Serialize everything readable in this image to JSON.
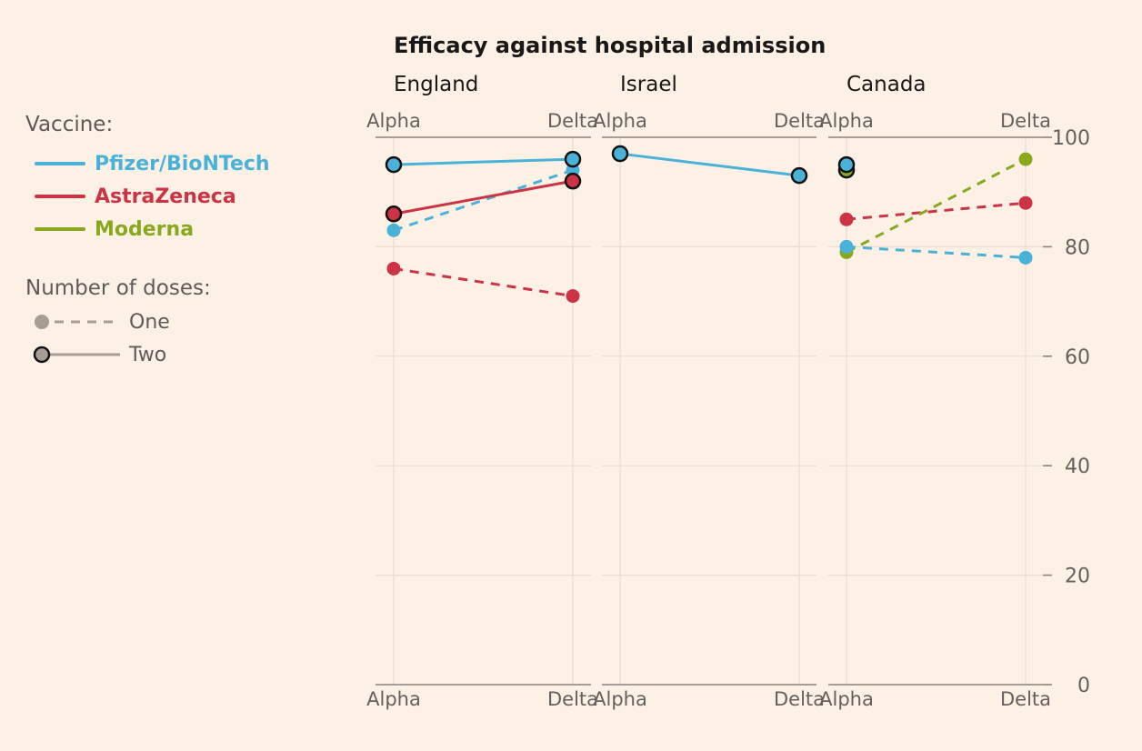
{
  "title": "Efficacy against hospital admission",
  "legend": {
    "vaccine_title": "Vaccine:",
    "vaccines": [
      {
        "label": "Pfizer/BioNTech",
        "color": "#4ab2d8"
      },
      {
        "label": "AstraZeneca",
        "color": "#cc3344"
      },
      {
        "label": "Moderna",
        "color": "#8aa81e"
      }
    ],
    "doses_title": "Number of doses:",
    "doses": [
      {
        "label": "One",
        "style": "dashed"
      },
      {
        "label": "Two",
        "style": "solid"
      }
    ]
  },
  "chart_data": {
    "type": "line",
    "title": "Efficacy against hospital admission",
    "categories": [
      "Alpha",
      "Delta"
    ],
    "y_ticks": [
      0,
      20,
      40,
      60,
      80,
      100
    ],
    "ylim": [
      0,
      100
    ],
    "grid": true,
    "legend_position": "left",
    "panels": [
      {
        "name": "England",
        "series": [
          {
            "vaccine": "Pfizer/BioNTech",
            "doses": "Two",
            "values": [
              95,
              96
            ]
          },
          {
            "vaccine": "Pfizer/BioNTech",
            "doses": "One",
            "values": [
              83,
              94
            ]
          },
          {
            "vaccine": "AstraZeneca",
            "doses": "Two",
            "values": [
              86,
              92
            ]
          },
          {
            "vaccine": "AstraZeneca",
            "doses": "One",
            "values": [
              76,
              71
            ]
          }
        ]
      },
      {
        "name": "Israel",
        "series": [
          {
            "vaccine": "Pfizer/BioNTech",
            "doses": "Two",
            "values": [
              97,
              93
            ]
          }
        ]
      },
      {
        "name": "Canada",
        "series": [
          {
            "vaccine": "Moderna",
            "doses": "Two",
            "values": [
              94,
              null
            ]
          },
          {
            "vaccine": "Pfizer/BioNTech",
            "doses": "Two",
            "values": [
              95,
              null
            ]
          },
          {
            "vaccine": "AstraZeneca",
            "doses": "One",
            "values": [
              85,
              88
            ]
          },
          {
            "vaccine": "Moderna",
            "doses": "One",
            "values": [
              79,
              96
            ]
          },
          {
            "vaccine": "Pfizer/BioNTech",
            "doses": "One",
            "values": [
              80,
              78
            ]
          }
        ]
      }
    ]
  }
}
